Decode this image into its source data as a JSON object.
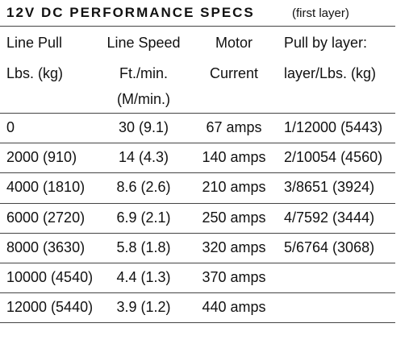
{
  "title": "12V DC PERFORMANCE SPECS",
  "subtitle": "(first layer)",
  "table": {
    "header": [
      [
        "Line Pull",
        "Lbs. (kg)"
      ],
      [
        "Line Speed",
        "Ft./min.",
        "(M/min.)"
      ],
      [
        "Motor",
        "Current"
      ],
      [
        "Pull by layer:",
        "layer/Lbs. (kg)"
      ]
    ],
    "rows": [
      [
        "0",
        "30 (9.1)",
        "67 amps",
        "1/12000 (5443)"
      ],
      [
        "2000 (910)",
        "14 (4.3)",
        "140 amps",
        "2/10054 (4560)"
      ],
      [
        "4000 (1810)",
        "8.6 (2.6)",
        "210 amps",
        "3/8651 (3924)"
      ],
      [
        "6000 (2720)",
        "6.9 (2.1)",
        "250 amps",
        "4/7592 (3444)"
      ],
      [
        "8000 (3630)",
        "5.8 (1.8)",
        "320 amps",
        "5/6764 (3068)"
      ],
      [
        "10000 (4540)",
        "4.4 (1.3)",
        "370 amps"
      ],
      [
        "12000 (5440)",
        "3.9 (1.2)",
        "440 amps"
      ]
    ]
  }
}
